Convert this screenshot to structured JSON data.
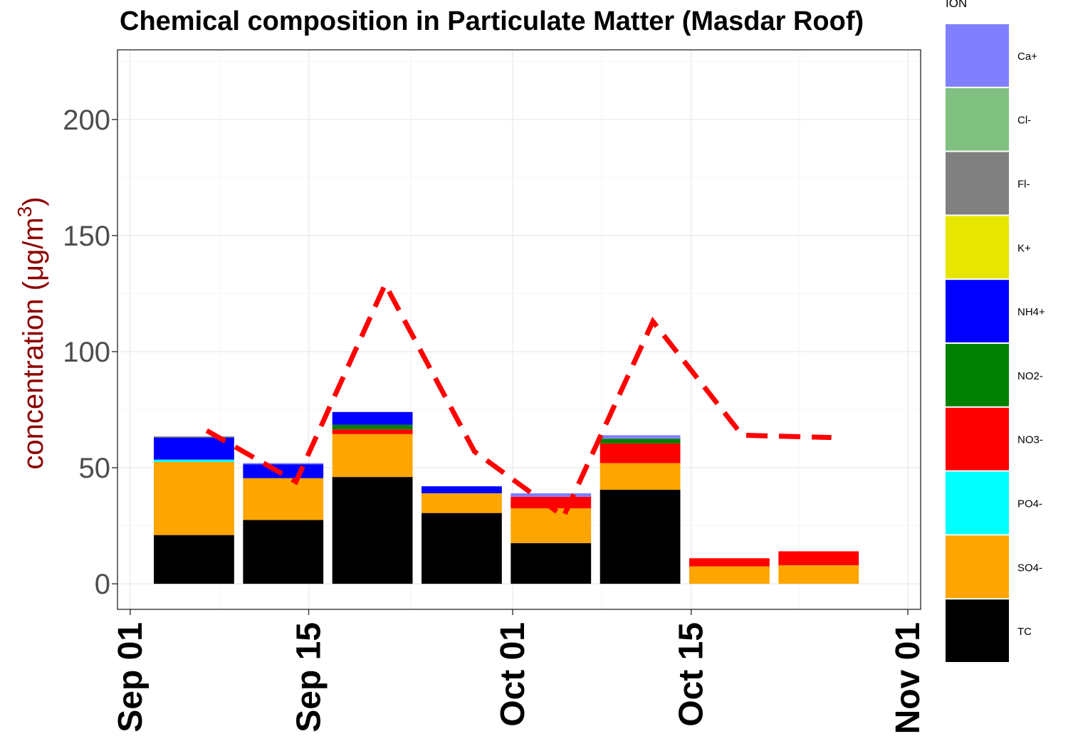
{
  "chart_data": {
    "type": "bar",
    "title": "Chemical composition in Particulate Matter (Masdar Roof)",
    "ylabel": "concentration (μg/m",
    "ylabel_superscript": "3",
    "ylabel_close": ")",
    "ylim": [
      -11,
      230
    ],
    "yticks": [
      0,
      50,
      100,
      150,
      200
    ],
    "xlim": [
      "2015-08-31",
      "2015-11-02"
    ],
    "xticks": [
      {
        "date": "2015-09-01",
        "label": "Sep 01"
      },
      {
        "date": "2015-09-15",
        "label": "Sep 15"
      },
      {
        "date": "2015-10-01",
        "label": "Oct 01"
      },
      {
        "date": "2015-10-15",
        "label": "Oct 15"
      },
      {
        "date": "2015-11-01",
        "label": "Nov 01"
      }
    ],
    "grid": true,
    "legend": {
      "title": "ION",
      "position": "right",
      "items": [
        {
          "name": "Ca+",
          "color": "#8080ff"
        },
        {
          "name": "Cl-",
          "color": "#80c080"
        },
        {
          "name": "Fl-",
          "color": "#808080"
        },
        {
          "name": "K+",
          "color": "#e6e600"
        },
        {
          "name": "NH4+",
          "color": "#0000ff"
        },
        {
          "name": "NO2-",
          "color": "#008000"
        },
        {
          "name": "NO3-",
          "color": "#ff0000"
        },
        {
          "name": "PO4-",
          "color": "#00ffff"
        },
        {
          "name": "SO4-",
          "color": "#ffa500"
        },
        {
          "name": "TC",
          "color": "#000000"
        }
      ]
    },
    "bar_centers": [
      "2015-09-06",
      "2015-09-13",
      "2015-09-20",
      "2015-09-27",
      "2015-10-04",
      "2015-10-11",
      "2015-10-18",
      "2015-10-25"
    ],
    "series": [
      {
        "name": "TC",
        "values": [
          21,
          27.5,
          46,
          30.5,
          17.5,
          40.5,
          0,
          0
        ]
      },
      {
        "name": "SO4-",
        "values": [
          31.5,
          18,
          18.5,
          8.5,
          15,
          11.5,
          7.5,
          8
        ]
      },
      {
        "name": "PO4-",
        "values": [
          1,
          0,
          0,
          0,
          0,
          0,
          0,
          0
        ]
      },
      {
        "name": "NO3-",
        "values": [
          0,
          0,
          2,
          0,
          5,
          8.5,
          3.5,
          6
        ]
      },
      {
        "name": "NO2-",
        "values": [
          0,
          0,
          2,
          0,
          0,
          2,
          0,
          0
        ]
      },
      {
        "name": "NH4+",
        "values": [
          9.5,
          6,
          5.5,
          3,
          0,
          0,
          0,
          0
        ]
      },
      {
        "name": "K+",
        "values": [
          0,
          0,
          0,
          0,
          0,
          0,
          0,
          0
        ]
      },
      {
        "name": "Fl-",
        "values": [
          0.5,
          0,
          0,
          0,
          0,
          0,
          0,
          0
        ]
      },
      {
        "name": "Cl-",
        "values": [
          0,
          0,
          0,
          0,
          0,
          0,
          0,
          0
        ]
      },
      {
        "name": "Ca+",
        "values": [
          0,
          0.5,
          0,
          0,
          1.5,
          1.5,
          0,
          0
        ]
      }
    ],
    "line": {
      "color": "#ff0000",
      "style": "dashed",
      "points": [
        {
          "x": "2015-09-07",
          "y": 66
        },
        {
          "x": "2015-09-14",
          "y": 44
        },
        {
          "x": "2015-09-21",
          "y": 129
        },
        {
          "x": "2015-09-28",
          "y": 57
        },
        {
          "x": "2015-10-05",
          "y": 29
        },
        {
          "x": "2015-10-12",
          "y": 113
        },
        {
          "x": "2015-10-19",
          "y": 64
        },
        {
          "x": "2015-10-26",
          "y": 63
        }
      ]
    }
  }
}
